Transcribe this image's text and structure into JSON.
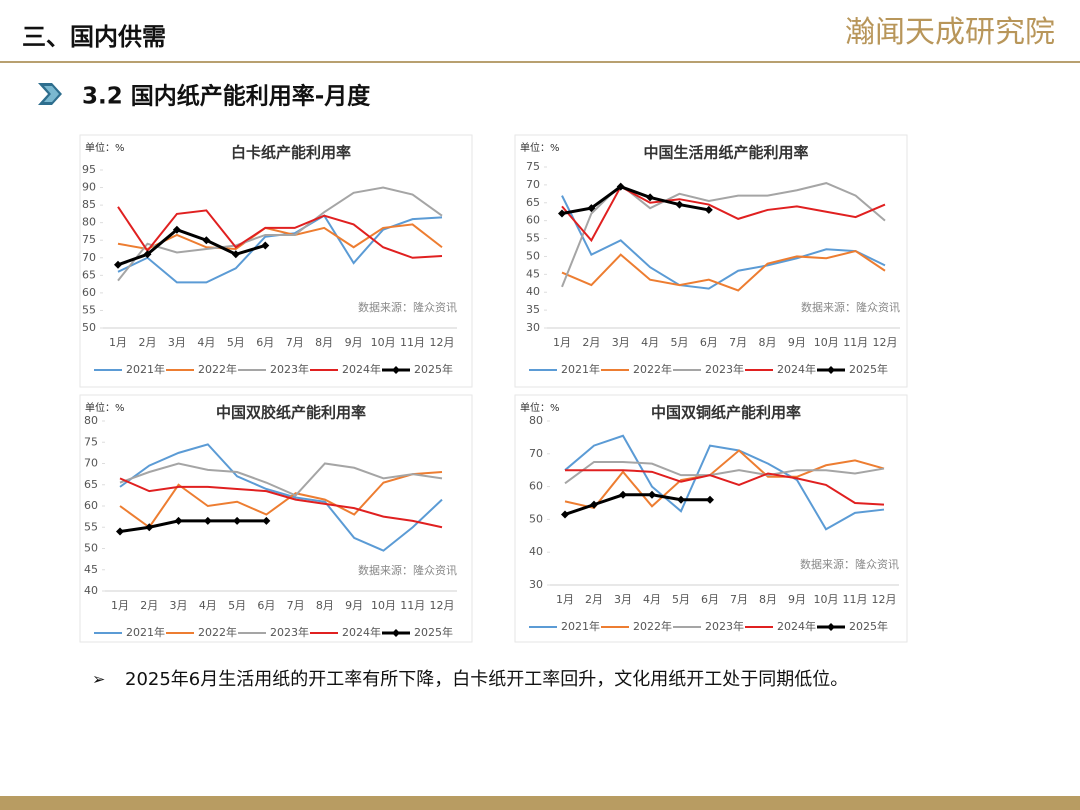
{
  "header": {
    "title": "三、国内供需",
    "logo": "瀚闻天成研究院",
    "section": "3.2 国内纸产能利用率-月度"
  },
  "bullet": "2025年6月生活用纸的开工率有所下降，白卡纸开工率回升，文化用纸开工处于同期低位。",
  "chart_data": [
    {
      "type": "line",
      "title": "白卡纸产能利用率",
      "unit": "单位：%",
      "source": "数据来源：隆众资讯",
      "categories": [
        "1月",
        "2月",
        "3月",
        "4月",
        "5月",
        "6月",
        "7月",
        "8月",
        "9月",
        "10月",
        "11月",
        "12月"
      ],
      "ylim": [
        50,
        95
      ],
      "yticks": [
        50,
        55,
        60,
        65,
        70,
        75,
        80,
        85,
        90,
        95
      ],
      "series": [
        {
          "name": "2021年",
          "color": "#5b9bd5",
          "values": [
            66,
            70,
            63,
            63,
            67,
            76,
            77,
            82,
            68.5,
            78,
            81,
            81.5
          ]
        },
        {
          "name": "2022年",
          "color": "#ed7d31",
          "values": [
            74,
            72.5,
            76.5,
            73,
            72.5,
            78.5,
            76.5,
            78.5,
            73,
            78.5,
            79.5,
            73
          ]
        },
        {
          "name": "2023年",
          "color": "#a5a5a5",
          "values": [
            63.5,
            74,
            71.5,
            72.5,
            73.5,
            76.5,
            76.5,
            83,
            88.5,
            90,
            88,
            82
          ]
        },
        {
          "name": "2024年",
          "color": "#e02020",
          "values": [
            84.5,
            72,
            82.5,
            83.5,
            73,
            78.5,
            78.5,
            82,
            79.5,
            73,
            70,
            70.5
          ]
        },
        {
          "name": "2025年",
          "color": "#000000",
          "values": [
            68,
            71,
            78,
            75,
            71,
            73.5,
            null,
            null,
            null,
            null,
            null,
            null
          ]
        }
      ]
    },
    {
      "type": "line",
      "title": "中国生活用纸产能利用率",
      "unit": "单位：%",
      "source": "数据来源：隆众资讯",
      "categories": [
        "1月",
        "2月",
        "3月",
        "4月",
        "5月",
        "6月",
        "7月",
        "8月",
        "9月",
        "10月",
        "11月",
        "12月"
      ],
      "ylim": [
        30,
        75
      ],
      "yticks": [
        30,
        35,
        40,
        45,
        50,
        55,
        60,
        65,
        70,
        75
      ],
      "series": [
        {
          "name": "2021年",
          "color": "#5b9bd5",
          "values": [
            67,
            50.5,
            54.5,
            47,
            42,
            41,
            46,
            47.5,
            49.5,
            52,
            51.5,
            47.5
          ]
        },
        {
          "name": "2022年",
          "color": "#ed7d31",
          "values": [
            45.5,
            42,
            50.5,
            43.5,
            42,
            43.5,
            40.5,
            48,
            50,
            49.5,
            51.5,
            46
          ]
        },
        {
          "name": "2023年",
          "color": "#a5a5a5",
          "values": [
            41.5,
            62,
            70,
            63.5,
            67.5,
            65.5,
            67,
            67,
            68.5,
            70.5,
            67,
            60
          ]
        },
        {
          "name": "2024年",
          "color": "#e02020",
          "values": [
            64,
            54.5,
            69.5,
            65,
            66,
            64.5,
            60.5,
            63,
            64,
            62.5,
            61,
            64.5
          ]
        },
        {
          "name": "2025年",
          "color": "#000000",
          "values": [
            62,
            63.5,
            69.5,
            66.5,
            64.5,
            63,
            null,
            null,
            null,
            null,
            null,
            null
          ]
        }
      ]
    },
    {
      "type": "line",
      "title": "中国双胶纸产能利用率",
      "unit": "单位：%",
      "source": "数据来源：隆众资讯",
      "categories": [
        "1月",
        "2月",
        "3月",
        "4月",
        "5月",
        "6月",
        "7月",
        "8月",
        "9月",
        "10月",
        "11月",
        "12月"
      ],
      "ylim": [
        40,
        80
      ],
      "yticks": [
        40,
        45,
        50,
        55,
        60,
        65,
        70,
        75,
        80
      ],
      "series": [
        {
          "name": "2021年",
          "color": "#5b9bd5",
          "values": [
            64.5,
            69.5,
            72.5,
            74.5,
            67,
            64,
            62,
            61,
            52.5,
            49.5,
            55,
            61.5
          ]
        },
        {
          "name": "2022年",
          "color": "#ed7d31",
          "values": [
            60,
            55,
            65,
            60,
            61,
            58,
            63,
            61.5,
            58,
            65.5,
            67.5,
            68
          ]
        },
        {
          "name": "2023年",
          "color": "#a5a5a5",
          "values": [
            65.5,
            68,
            70,
            68.5,
            68,
            65.5,
            62.5,
            70,
            69,
            66.5,
            67.5,
            66.5
          ]
        },
        {
          "name": "2024年",
          "color": "#e02020",
          "values": [
            66.5,
            63.5,
            64.5,
            64.5,
            64,
            63.5,
            61.5,
            60.5,
            59.5,
            57.5,
            56.5,
            55
          ]
        },
        {
          "name": "2025年",
          "color": "#000000",
          "values": [
            54,
            55,
            56.5,
            56.5,
            56.5,
            56.5,
            null,
            null,
            null,
            null,
            null,
            null
          ]
        }
      ]
    },
    {
      "type": "line",
      "title": "中国双铜纸产能利用率",
      "unit": "单位：%",
      "source": "数据来源：隆众资讯",
      "categories": [
        "1月",
        "2月",
        "3月",
        "4月",
        "5月",
        "6月",
        "7月",
        "8月",
        "9月",
        "10月",
        "11月",
        "12月"
      ],
      "ylim": [
        30,
        80
      ],
      "yticks": [
        30,
        40,
        50,
        60,
        70,
        80
      ],
      "series": [
        {
          "name": "2021年",
          "color": "#5b9bd5",
          "values": [
            65,
            72.5,
            75.5,
            60,
            52.5,
            72.5,
            71,
            67,
            62,
            47,
            52,
            53
          ]
        },
        {
          "name": "2022年",
          "color": "#ed7d31",
          "values": [
            55.5,
            53.5,
            64.5,
            54,
            62,
            63.5,
            71,
            63,
            63,
            66.5,
            68,
            65.5
          ]
        },
        {
          "name": "2023年",
          "color": "#a5a5a5",
          "values": [
            61,
            67.5,
            67.5,
            67,
            63.5,
            63.5,
            65,
            63.5,
            65,
            65,
            64,
            65.5
          ]
        },
        {
          "name": "2024年",
          "color": "#e02020",
          "values": [
            65,
            65,
            65,
            64.5,
            61.5,
            63.5,
            60.5,
            64,
            62.5,
            60.5,
            55,
            54.5
          ]
        },
        {
          "name": "2025年",
          "color": "#000000",
          "values": [
            51.5,
            54.5,
            57.5,
            57.5,
            56,
            56,
            null,
            null,
            null,
            null,
            null,
            null
          ]
        }
      ]
    }
  ]
}
